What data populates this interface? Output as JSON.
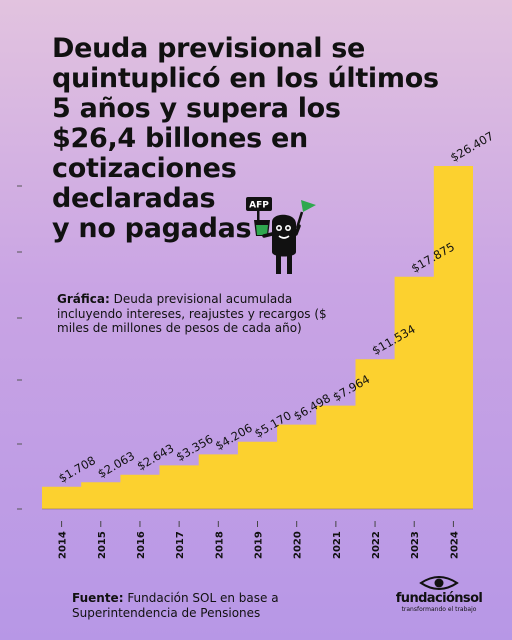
{
  "headline": "Deuda previsional se\nquintuplicó en los últimos\n5 años y supera los\n$26,4 billones en\ncotizaciones\ndeclaradas\ny no pagadas",
  "caption": {
    "label": "Gráfica:",
    "text": " Deuda previsional acumulada incluyendo intereses, reajustes y recargos ($ miles de millones de pesos de cada año)"
  },
  "source": {
    "label": "Fuente:",
    "text": " Fundación SOL en base a Superintendencia de Pensiones"
  },
  "logo": {
    "name": "fundaciónsol",
    "tagline": "transformando el trabajo"
  },
  "mascot": {
    "sign_text": "AFP",
    "icon": "afp-mascot-icon"
  },
  "colors": {
    "bar": "#fcd12f",
    "text": "#111111",
    "mascot": "#111111",
    "flag": "#2fa84f"
  },
  "chart_data": {
    "type": "area",
    "x": [
      "2014",
      "2015",
      "2016",
      "2017",
      "2018",
      "2019",
      "2020",
      "2021",
      "2022",
      "2023",
      "2024"
    ],
    "values": [
      1708,
      2063,
      2643,
      3356,
      4206,
      5170,
      6498,
      7964,
      11534,
      17875,
      26407
    ],
    "labels": [
      "$1.708",
      "$2.063",
      "$2.643",
      "$3.356",
      "$4.206",
      "$5.170",
      "$6.498",
      "$7.964",
      "$11.534",
      "$17.875",
      "$26.407"
    ],
    "step": true,
    "ylim": [
      0,
      26407
    ],
    "title": "",
    "xlabel": "",
    "ylabel": "",
    "grid": false
  }
}
